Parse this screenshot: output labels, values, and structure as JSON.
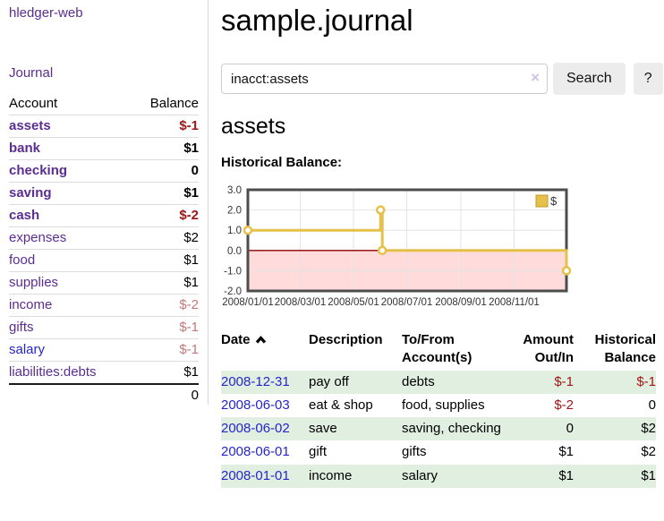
{
  "app": {
    "brand": "hledger-web",
    "nav_journal": "Journal"
  },
  "sidebar": {
    "col_account": "Account",
    "col_balance": "Balance",
    "accounts": [
      {
        "name": "assets",
        "balance": "$-1",
        "level": 1,
        "bold": true,
        "blue": false,
        "balance_tone": "neg-strong"
      },
      {
        "name": "bank",
        "balance": "$1",
        "level": 2,
        "bold": true,
        "blue": false,
        "balance_tone": "normal"
      },
      {
        "name": "checking",
        "balance": "0",
        "level": 3,
        "bold": true,
        "blue": false,
        "balance_tone": "normal"
      },
      {
        "name": "saving",
        "balance": "$1",
        "level": 3,
        "bold": true,
        "blue": false,
        "balance_tone": "normal"
      },
      {
        "name": "cash",
        "balance": "$-2",
        "level": 2,
        "bold": true,
        "blue": false,
        "balance_tone": "neg-strong"
      },
      {
        "name": "expenses",
        "balance": "$2",
        "level": 1,
        "bold": false,
        "blue": false,
        "balance_tone": "normal"
      },
      {
        "name": "food",
        "balance": "$1",
        "level": 2,
        "bold": false,
        "blue": false,
        "balance_tone": "normal"
      },
      {
        "name": "supplies",
        "balance": "$1",
        "level": 2,
        "bold": false,
        "blue": false,
        "balance_tone": "normal"
      },
      {
        "name": "income",
        "balance": "$-2",
        "level": 1,
        "bold": false,
        "blue": false,
        "balance_tone": "neg-soft"
      },
      {
        "name": "gifts",
        "balance": "$-1",
        "level": 2,
        "bold": false,
        "blue": false,
        "balance_tone": "neg-soft"
      },
      {
        "name": "salary",
        "balance": "$-1",
        "level": 2,
        "bold": false,
        "blue": true,
        "balance_tone": "neg-soft"
      },
      {
        "name": "liabilities:debts",
        "balance": "$1",
        "level": 1,
        "bold": false,
        "blue": false,
        "balance_tone": "normal"
      }
    ],
    "total": "0"
  },
  "header": {
    "title": "sample.journal"
  },
  "search": {
    "value": "inacct:assets",
    "clear_icon": "×",
    "search_label": "Search",
    "help_label": "?"
  },
  "main": {
    "account_title": "assets",
    "chart_label": "Historical Balance:"
  },
  "chart_data": {
    "type": "line",
    "step": true,
    "title": "Historical Balance:",
    "ylim": [
      -2,
      3
    ],
    "yticks": [
      3.0,
      2.0,
      1.0,
      0.0,
      -1.0,
      -2.0
    ],
    "x_max_day": 365,
    "xticks": [
      {
        "label": "2008/01/01",
        "day": 0
      },
      {
        "label": "2008/03/01",
        "day": 60
      },
      {
        "label": "2008/05/01",
        "day": 121
      },
      {
        "label": "2008/07/01",
        "day": 182
      },
      {
        "label": "2008/09/01",
        "day": 244
      },
      {
        "label": "2008/11/01",
        "day": 305
      }
    ],
    "series": [
      {
        "name": "$",
        "color": "#e6c14a",
        "points": [
          {
            "date": "2008-01-01",
            "day": 0,
            "y": 1
          },
          {
            "date": "2008-06-01",
            "day": 152,
            "y": 2
          },
          {
            "date": "2008-06-03",
            "day": 154,
            "y": 0
          },
          {
            "date": "2008-12-31",
            "day": 365,
            "y": -1
          }
        ]
      }
    ],
    "legend_position": "top-right",
    "legend_label": "$",
    "negative_fill": "#ffdbdb",
    "zero_line_color": "#8b0000",
    "grid_color": "#e3e3e3",
    "border_color": "#4d4d4d"
  },
  "register": {
    "headers": {
      "date": "Date",
      "description": "Description",
      "account": "To/From Account(s)",
      "amount": "Amount Out/In",
      "balance": "Historical Balance"
    },
    "rows": [
      {
        "date": "2008-12-31",
        "description": "pay off",
        "accounts": "debts",
        "amount": "$-1",
        "balance": "$-1"
      },
      {
        "date": "2008-06-03",
        "description": "eat & shop",
        "accounts": "food, supplies",
        "amount": "$-2",
        "balance": "0"
      },
      {
        "date": "2008-06-02",
        "description": "save",
        "accounts": "saving, checking",
        "amount": "0",
        "balance": "$2"
      },
      {
        "date": "2008-06-01",
        "description": "gift",
        "accounts": "gifts",
        "amount": "$1",
        "balance": "$2"
      },
      {
        "date": "2008-01-01",
        "description": "income",
        "accounts": "salary",
        "amount": "$1",
        "balance": "$1"
      }
    ]
  },
  "colors": {
    "purple": "#5c2d91",
    "link_blue": "#2525cc",
    "negative_strong": "#a01616",
    "negative_soft": "#c47878",
    "row_stripe_green": "#e1efe0",
    "chart_yellow": "#e6c14a",
    "chart_negative_fill": "#ffdbdb",
    "zero_line": "#8b0000",
    "button_bg": "#ececec"
  }
}
